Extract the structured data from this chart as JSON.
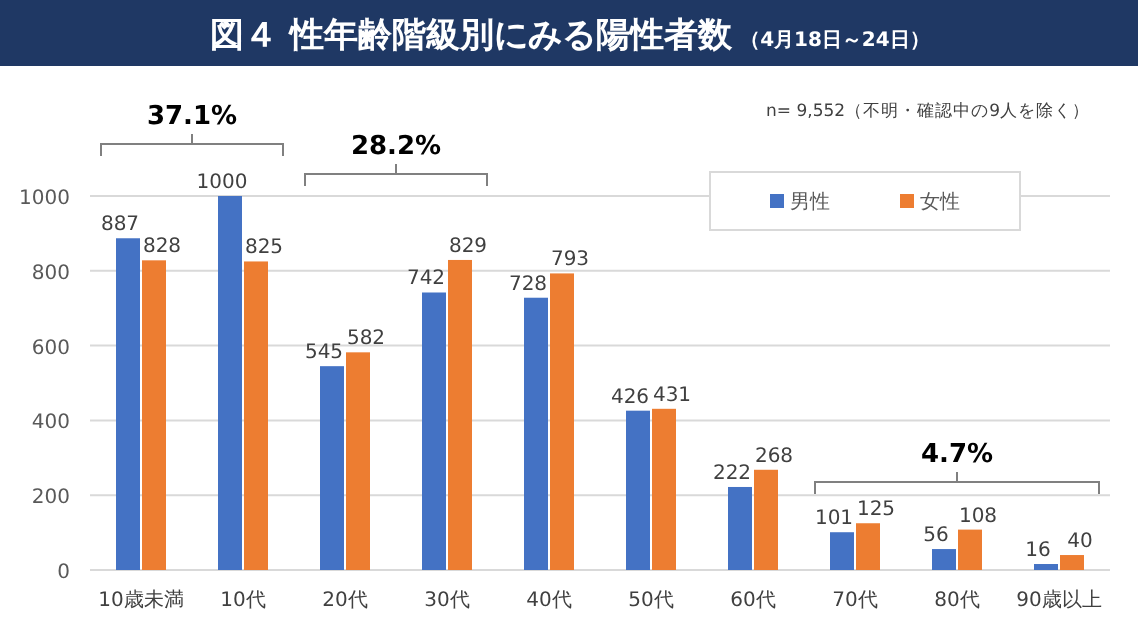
{
  "chart_data": {
    "type": "bar",
    "title": "図４ 性年齢階級別にみる陽性者数",
    "subtitle": "（4月18日～24日）",
    "categories": [
      "10歳未満",
      "10代",
      "20代",
      "30代",
      "40代",
      "50代",
      "60代",
      "70代",
      "80代",
      "90歳以上"
    ],
    "series": [
      {
        "name": "男性",
        "color": "#4472c4",
        "values": [
          887,
          1000,
          545,
          742,
          728,
          426,
          222,
          101,
          56,
          16
        ]
      },
      {
        "name": "女性",
        "color": "#ed7d31",
        "values": [
          828,
          825,
          582,
          829,
          793,
          431,
          268,
          125,
          108,
          40
        ]
      }
    ],
    "ylim": [
      0,
      1000
    ],
    "yticks": [
      0,
      200,
      400,
      600,
      800,
      1000
    ],
    "grid": "y",
    "legend": "top right",
    "data_labels": true,
    "annotations": [
      "n= 9,552（不明・確認中の9人を除く）",
      "37.1%",
      "28.2%",
      "4.7%"
    ]
  }
}
